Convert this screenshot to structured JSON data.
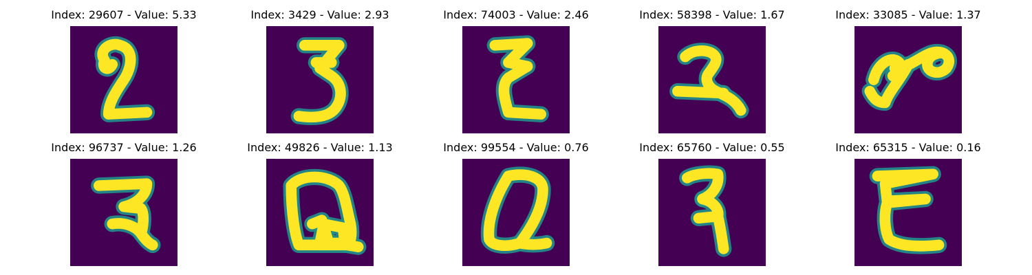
{
  "colors": {
    "background": "#440154",
    "stroke_mid": "#21918c",
    "stroke_core": "#fde725"
  },
  "samples": [
    {
      "title": "Index: 29607 - Value: 5.33",
      "glyph": "digit-two-icon"
    },
    {
      "title": "Index: 3429 - Value: 2.93",
      "glyph": "digit-three-icon"
    },
    {
      "title": "Index: 74003 - Value: 2.46",
      "glyph": "sigma-like-icon"
    },
    {
      "title": "Index: 58398 - Value: 1.67",
      "glyph": "digit-two-looped-icon"
    },
    {
      "title": "Index: 33085 - Value: 1.37",
      "glyph": "loop-scribble-icon"
    },
    {
      "title": "Index: 96737 - Value: 1.26",
      "glyph": "hooked-three-icon"
    },
    {
      "title": "Index: 49826 - Value: 1.13",
      "glyph": "letter-q-icon"
    },
    {
      "title": "Index: 99554 - Value: 0.76",
      "glyph": "slanted-q-icon"
    },
    {
      "title": "Index: 65760 - Value: 0.55",
      "glyph": "open-three-icon"
    },
    {
      "title": "Index: 65315 - Value: 0.16",
      "glyph": "epsilon-icon"
    }
  ]
}
